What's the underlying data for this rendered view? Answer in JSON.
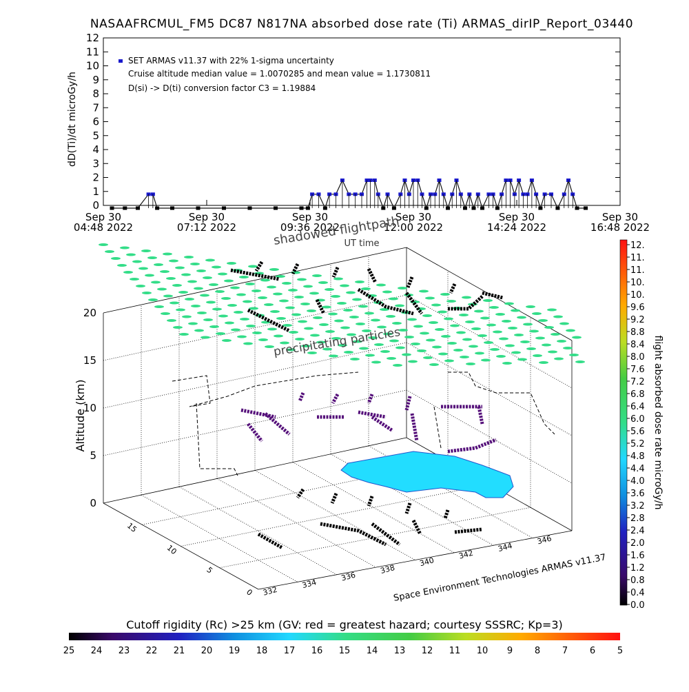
{
  "title": "NASAAFRCMUL_FM5 DC87 N817NA absorbed dose rate (Ti) ARMAS_dirIP_Report_03440",
  "chart_data": [
    {
      "type": "scatter",
      "name": "time_series",
      "ylabel": "dD(Ti)/dt microGy/h",
      "xlabel": "UT time",
      "ylim": [
        0,
        12
      ],
      "yticks": [
        0,
        1,
        2,
        3,
        4,
        5,
        6,
        7,
        8,
        9,
        10,
        11,
        12
      ],
      "xtick_labels": [
        [
          "Sep 30",
          "04:48 2022"
        ],
        [
          "Sep 30",
          "07:12 2022"
        ],
        [
          "Sep 30",
          "09:36 2022"
        ],
        [
          "Sep 30",
          "12:00 2022"
        ],
        [
          "Sep 30",
          "14:24 2022"
        ],
        [
          "Sep 30",
          "16:48 2022"
        ]
      ],
      "xlim_hours": [
        4.8,
        16.8
      ],
      "legend_lines": [
        "SET ARMAS v11.37 with 22% 1-sigma uncertainty",
        "Cruise altitude median value = 1.0070285 and mean value = 1.1730811",
        "D(si) -> D(ti) conversion factor C3 = 1.19884"
      ],
      "series_color": "#1a1acc",
      "points": [
        [
          5.0,
          0
        ],
        [
          5.3,
          0
        ],
        [
          5.6,
          0
        ],
        [
          5.85,
          1
        ],
        [
          5.95,
          1
        ],
        [
          6.05,
          0
        ],
        [
          6.4,
          0
        ],
        [
          7.0,
          0
        ],
        [
          7.6,
          0
        ],
        [
          8.2,
          0
        ],
        [
          8.8,
          0
        ],
        [
          9.4,
          0
        ],
        [
          9.55,
          0
        ],
        [
          9.65,
          1
        ],
        [
          9.8,
          1
        ],
        [
          9.95,
          0
        ],
        [
          10.05,
          1
        ],
        [
          10.2,
          1
        ],
        [
          10.35,
          2
        ],
        [
          10.5,
          1
        ],
        [
          10.65,
          1
        ],
        [
          10.8,
          1
        ],
        [
          10.92,
          2
        ],
        [
          11.0,
          2
        ],
        [
          11.1,
          2
        ],
        [
          11.18,
          1
        ],
        [
          11.3,
          0
        ],
        [
          11.4,
          1
        ],
        [
          11.55,
          0
        ],
        [
          11.7,
          1
        ],
        [
          11.8,
          2
        ],
        [
          11.9,
          1
        ],
        [
          12.0,
          2
        ],
        [
          12.1,
          2
        ],
        [
          12.2,
          1
        ],
        [
          12.3,
          0
        ],
        [
          12.4,
          1
        ],
        [
          12.5,
          1
        ],
        [
          12.6,
          2
        ],
        [
          12.7,
          1
        ],
        [
          12.8,
          0
        ],
        [
          12.9,
          1
        ],
        [
          13.0,
          2
        ],
        [
          13.1,
          1
        ],
        [
          13.2,
          0
        ],
        [
          13.3,
          1
        ],
        [
          13.4,
          0
        ],
        [
          13.5,
          1
        ],
        [
          13.6,
          0
        ],
        [
          13.75,
          1
        ],
        [
          13.85,
          1
        ],
        [
          13.95,
          0
        ],
        [
          14.05,
          1
        ],
        [
          14.15,
          2
        ],
        [
          14.25,
          2
        ],
        [
          14.35,
          1
        ],
        [
          14.45,
          2
        ],
        [
          14.55,
          1
        ],
        [
          14.65,
          1
        ],
        [
          14.75,
          2
        ],
        [
          14.85,
          1
        ],
        [
          14.95,
          0
        ],
        [
          15.05,
          1
        ],
        [
          15.2,
          1
        ],
        [
          15.35,
          0
        ],
        [
          15.5,
          1
        ],
        [
          15.6,
          2
        ],
        [
          15.7,
          1
        ],
        [
          15.8,
          0
        ],
        [
          16.0,
          0
        ]
      ]
    },
    {
      "type": "scatter",
      "name": "flight_3d",
      "zlabel": "Altitude (km)",
      "zlim": [
        0,
        20
      ],
      "zticks": [
        0,
        5,
        10,
        15,
        20
      ],
      "longitude_ticks": [
        "332",
        "334",
        "336",
        "338",
        "340",
        "342",
        "344",
        "346"
      ],
      "latitude_ticks": [
        "0",
        "5",
        "10",
        "15"
      ],
      "annotations": {
        "shadowed": "shadowed flightpath",
        "precip": "precipitating particles",
        "credit": "Space Environment Technologies ARMAS v11.37"
      }
    },
    {
      "type": "heatmap",
      "name": "dose_colorbar",
      "label": "flight absorbed dose rate microGy/h",
      "ticks": [
        "12.",
        "11.",
        "11.",
        "10.",
        "10.",
        "9.6",
        "9.2",
        "8.8",
        "8.4",
        "8.0",
        "7.6",
        "7.2",
        "6.8",
        "6.4",
        "6.0",
        "5.6",
        "5.2",
        "4.8",
        "4.4",
        "4.0",
        "3.6",
        "3.2",
        "2.8",
        "2.4",
        "2.0",
        "1.6",
        "1.2",
        "0.8",
        "0.4",
        "0.0"
      ]
    },
    {
      "type": "heatmap",
      "name": "cutoff_colorbar",
      "label": "Cutoff rigidity (Rc) >25 km (GV: red = greatest hazard; courtesy SSSRC; Kp=3)",
      "ticks": [
        "25",
        "24",
        "23",
        "22",
        "21",
        "20",
        "19",
        "18",
        "17",
        "16",
        "15",
        "14",
        "13",
        "12",
        "11",
        "10",
        "9",
        "8",
        "7",
        "6",
        "5"
      ]
    }
  ],
  "colors": {
    "precip": "#33dd88",
    "map_fill": "#22ddff",
    "track_dark": "#000000",
    "track_purple": "#55107a",
    "markers": "#3a1a99"
  }
}
